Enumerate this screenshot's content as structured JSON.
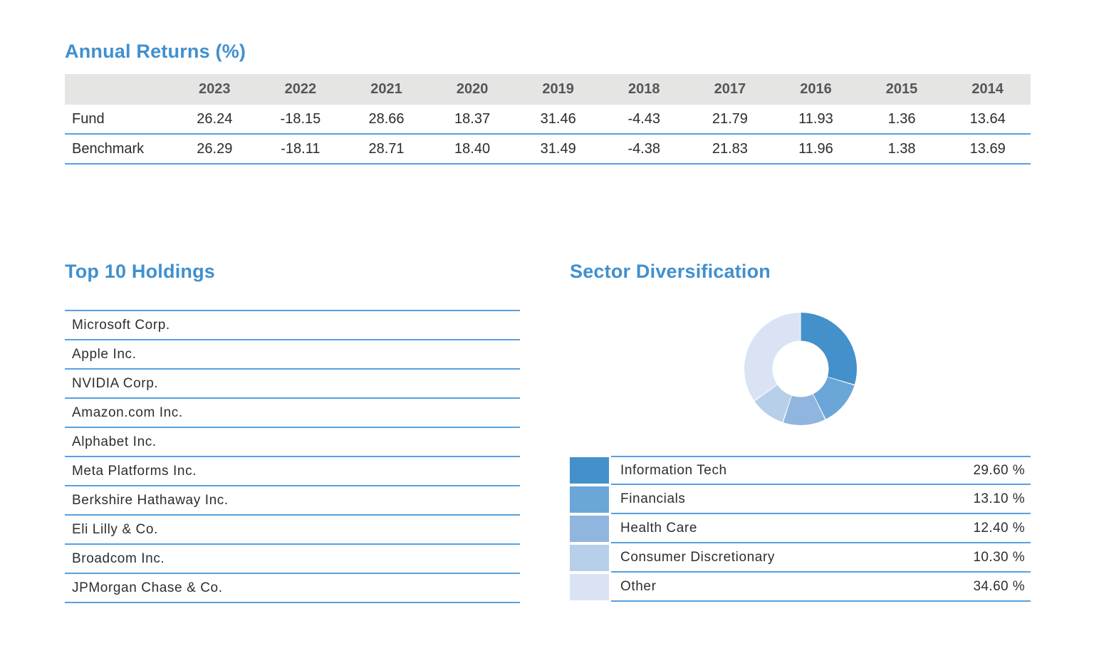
{
  "colors": {
    "accent_blue": "#4090CF",
    "rule_blue": "#58A0DF",
    "table_header_bg": "#E5E5E3",
    "table_header_text": "#55565A",
    "body_text": "#2E2E2E"
  },
  "annual_returns": {
    "title": "Annual Returns (%)",
    "years": [
      "2023",
      "2022",
      "2021",
      "2020",
      "2019",
      "2018",
      "2017",
      "2016",
      "2015",
      "2014"
    ],
    "rows": [
      {
        "label": "Fund",
        "values": [
          "26.24",
          "-18.15",
          "28.66",
          "18.37",
          "31.46",
          "-4.43",
          "21.79",
          "11.93",
          "1.36",
          "13.64"
        ]
      },
      {
        "label": "Benchmark",
        "values": [
          "26.29",
          "-18.11",
          "28.71",
          "18.40",
          "31.49",
          "-4.38",
          "21.83",
          "11.96",
          "1.38",
          "13.69"
        ]
      }
    ]
  },
  "top_holdings": {
    "title": "Top 10 Holdings",
    "items": [
      "Microsoft Corp.",
      "Apple Inc.",
      "NVIDIA Corp.",
      "Amazon.com Inc.",
      "Alphabet Inc.",
      "Meta Platforms Inc.",
      "Berkshire Hathaway Inc.",
      "Eli Lilly & Co.",
      "Broadcom Inc.",
      "JPMorgan Chase & Co."
    ]
  },
  "sector_diversification": {
    "title": "Sector Diversification",
    "sectors": [
      {
        "name": "Information Tech",
        "pct": "29.60 %",
        "value": 29.6,
        "color": "#4390CB"
      },
      {
        "name": "Financials",
        "pct": "13.10 %",
        "value": 13.1,
        "color": "#6BA6D8"
      },
      {
        "name": "Health Care",
        "pct": "12.40 %",
        "value": 12.4,
        "color": "#90B5DF"
      },
      {
        "name": "Consumer Discretionary",
        "pct": "10.30 %",
        "value": 10.3,
        "color": "#B8CFEA"
      },
      {
        "name": "Other",
        "pct": "34.60 %",
        "value": 34.6,
        "color": "#DAE3F4"
      }
    ]
  },
  "chart_data": {
    "type": "pie",
    "title": "Sector Diversification",
    "donut": true,
    "inner_radius_ratio": 0.5,
    "start_angle_deg": 0,
    "direction": "clockwise",
    "labels": [
      "Information Tech",
      "Financials",
      "Health Care",
      "Consumer Discretionary",
      "Other"
    ],
    "values": [
      29.6,
      13.1,
      12.4,
      10.3,
      34.6
    ],
    "colors": [
      "#4390CB",
      "#6BA6D8",
      "#90B5DF",
      "#B8CFEA",
      "#DAE3F4"
    ],
    "legend_position": "bottom"
  }
}
